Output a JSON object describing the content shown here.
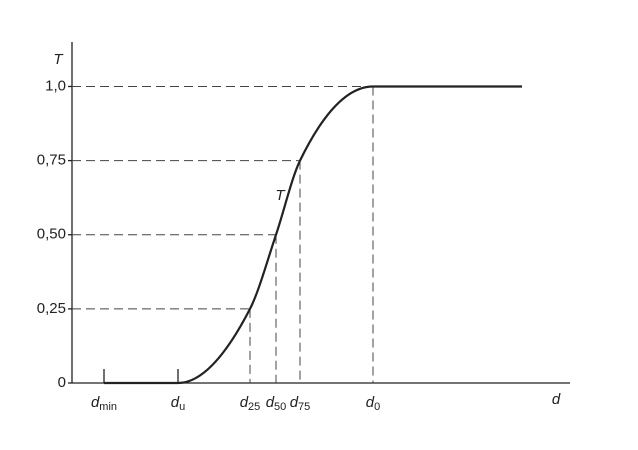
{
  "chart_data": {
    "type": "line",
    "y_label": "T",
    "x_label": "d",
    "curve_label": "T",
    "categories": [
      {
        "symbol": "d",
        "subscript": "min"
      },
      {
        "symbol": "d",
        "subscript": "u"
      },
      {
        "symbol": "d",
        "subscript": "25"
      },
      {
        "symbol": "d",
        "subscript": "50"
      },
      {
        "symbol": "d",
        "subscript": "75"
      },
      {
        "symbol": "d",
        "subscript": "0"
      }
    ],
    "values": [
      0,
      0,
      0.25,
      0.5,
      0.75,
      1.0
    ],
    "color": "#222222",
    "ylim": [
      0,
      1.15
    ],
    "yticks": [
      0,
      {
        "value": 0.25,
        "label": "0,25"
      },
      {
        "value": 0.5,
        "label": "0,50"
      },
      {
        "value": 0.75,
        "label": "0,75"
      },
      {
        "value": 1.0,
        "label": "1,0"
      }
    ]
  }
}
